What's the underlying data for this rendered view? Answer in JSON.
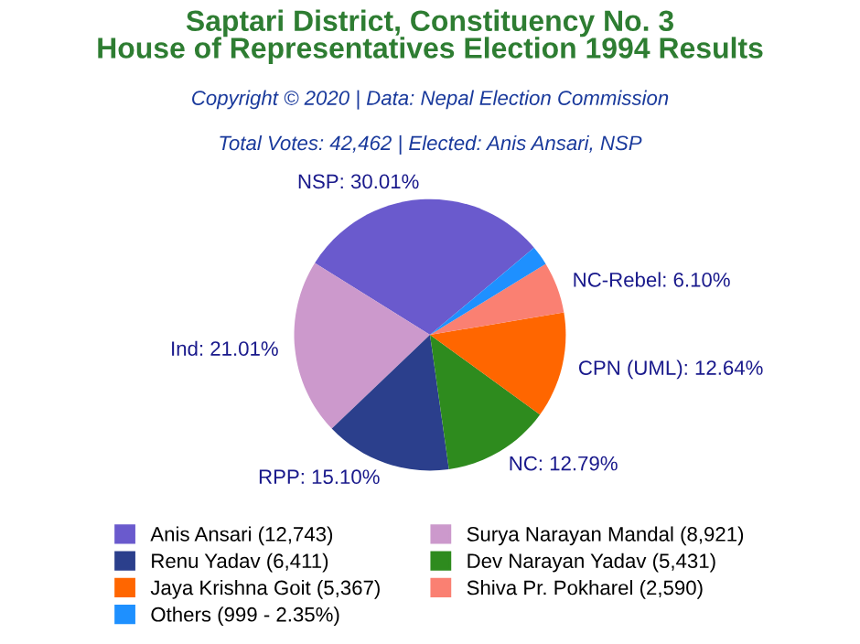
{
  "chart_data": {
    "type": "pie",
    "title": "Saptari District, Constituency No. 3\nHouse of Representatives Election 1994 Results",
    "subtitle": "Total Votes: 42,462 | Elected: Anis Ansari, NSP",
    "annotations": [
      "Copyright © 2020 | Data: Nepal Election Commission"
    ],
    "categories": [
      "Anis Ansari (12,743)",
      "Surya Narayan Mandal (8,921)",
      "Renu Yadav (6,411)",
      "Dev Narayan Yadav (5,431)",
      "Jaya Krishna Goit (5,367)",
      "Shiva Pr. Pokharel (2,590)",
      "Others (999 - 2.35%)"
    ],
    "values": [
      30.01,
      21.01,
      15.1,
      12.79,
      12.64,
      6.1,
      2.35
    ],
    "value_labels": [
      "NSP: 30.01%",
      "Ind: 21.01%",
      "RPP: 15.10%",
      "NC: 12.79%",
      "CPN (UML): 12.64%",
      "NC-Rebel: 6.10%",
      null
    ],
    "colors": [
      "#6a5acd",
      "#cc99cc",
      "#2b3f8c",
      "#2e8b1e",
      "#ff6600",
      "#fa8072",
      "#1e90ff"
    ],
    "legend": "bottom"
  }
}
